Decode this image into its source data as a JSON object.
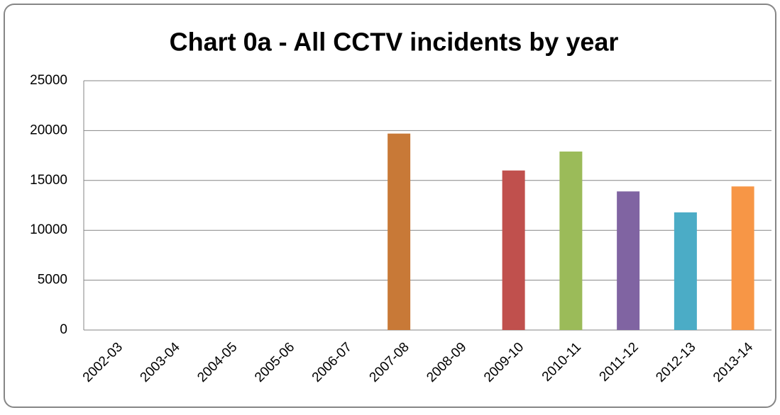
{
  "chart_data": {
    "type": "bar",
    "title": "Chart 0a - All CCTV incidents by year",
    "categories": [
      "2002-03",
      "2003-04",
      "2004-05",
      "2005-06",
      "2006-07",
      "2007-08",
      "2008-09",
      "2009-10",
      "2010-11",
      "2011-12",
      "2012-13",
      "2013-14"
    ],
    "values": [
      null,
      null,
      null,
      null,
      null,
      19700,
      null,
      16000,
      17900,
      13900,
      11800,
      14400
    ],
    "colors": [
      null,
      null,
      null,
      null,
      null,
      "#c87937",
      null,
      "#c0504d",
      "#9bbb59",
      "#8064a2",
      "#4bacc6",
      "#f79646"
    ],
    "ylim": [
      0,
      25000
    ],
    "yticks": [
      0,
      5000,
      10000,
      15000,
      20000,
      25000
    ],
    "grid": true
  }
}
